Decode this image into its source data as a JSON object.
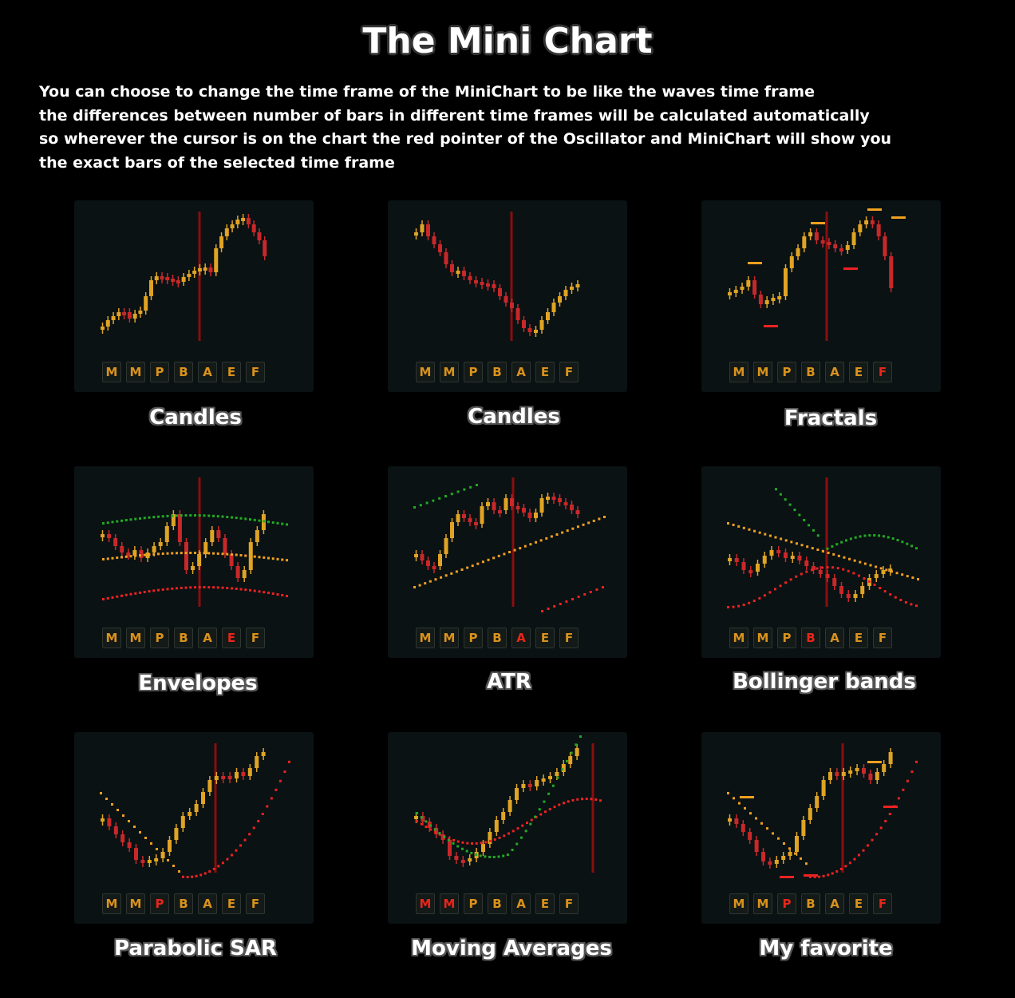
{
  "title": "The Mini Chart",
  "description": [
    "You can choose to change the time frame of the MiniChart to be like the waves time frame",
    "the differences between number of bars in different time frames will be calculated automatically",
    "so wherever the cursor is on the chart the red pointer of the Oscillator and MiniChart will show you",
    "the exact bars of the  selected time frame"
  ],
  "timeframe_labels": [
    "M",
    "M",
    "P",
    "B",
    "A",
    "E",
    "F"
  ],
  "colors": {
    "bull": "#e0a424",
    "bear": "#c8282a",
    "cursor": "#8a0e0e",
    "panel": "#0a1214",
    "orange_dot": "#f0a020",
    "red_dot": "#ee2222",
    "green_dot": "#22aa22",
    "active_tf": "#e8261a"
  },
  "panels": [
    {
      "label": "Candles",
      "active": []
    },
    {
      "label": "Candles",
      "active": []
    },
    {
      "label": "Fractals",
      "active": [
        6
      ]
    },
    {
      "label": "Envelopes",
      "active": [
        5
      ]
    },
    {
      "label": "ATR",
      "active": [
        4
      ]
    },
    {
      "label": "Bollinger bands",
      "active": [
        3
      ]
    },
    {
      "label": "Parabolic SAR",
      "active": [
        2
      ]
    },
    {
      "label": "Moving Averages",
      "active": [
        0,
        1
      ]
    },
    {
      "label": "My favorite",
      "active": [
        2,
        6
      ]
    }
  ]
}
